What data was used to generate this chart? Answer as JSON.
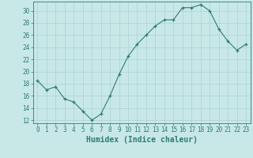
{
  "x": [
    0,
    1,
    2,
    3,
    4,
    5,
    6,
    7,
    8,
    9,
    10,
    11,
    12,
    13,
    14,
    15,
    16,
    17,
    18,
    19,
    20,
    21,
    22,
    23
  ],
  "y": [
    18.5,
    17,
    17.5,
    15.5,
    15,
    13.5,
    12,
    13,
    16,
    19.5,
    22.5,
    24.5,
    26,
    27.5,
    28.5,
    28.5,
    30.5,
    30.5,
    31,
    30,
    27,
    25,
    23.5,
    24.5
  ],
  "xlabel": "Humidex (Indice chaleur)",
  "xlim": [
    -0.5,
    23.5
  ],
  "ylim": [
    11.5,
    31.5
  ],
  "yticks": [
    12,
    14,
    16,
    18,
    20,
    22,
    24,
    26,
    28,
    30
  ],
  "xticks": [
    0,
    1,
    2,
    3,
    4,
    5,
    6,
    7,
    8,
    9,
    10,
    11,
    12,
    13,
    14,
    15,
    16,
    17,
    18,
    19,
    20,
    21,
    22,
    23
  ],
  "line_color": "#2e7d6e",
  "marker": "+",
  "bg_color": "#c8e8e8",
  "grid_color": "#aed0d0",
  "label_color": "#2e7d6e",
  "tick_color": "#2e7d6e",
  "spine_color": "#2e7d6e",
  "tick_fontsize": 5.5,
  "xlabel_fontsize": 7.0
}
